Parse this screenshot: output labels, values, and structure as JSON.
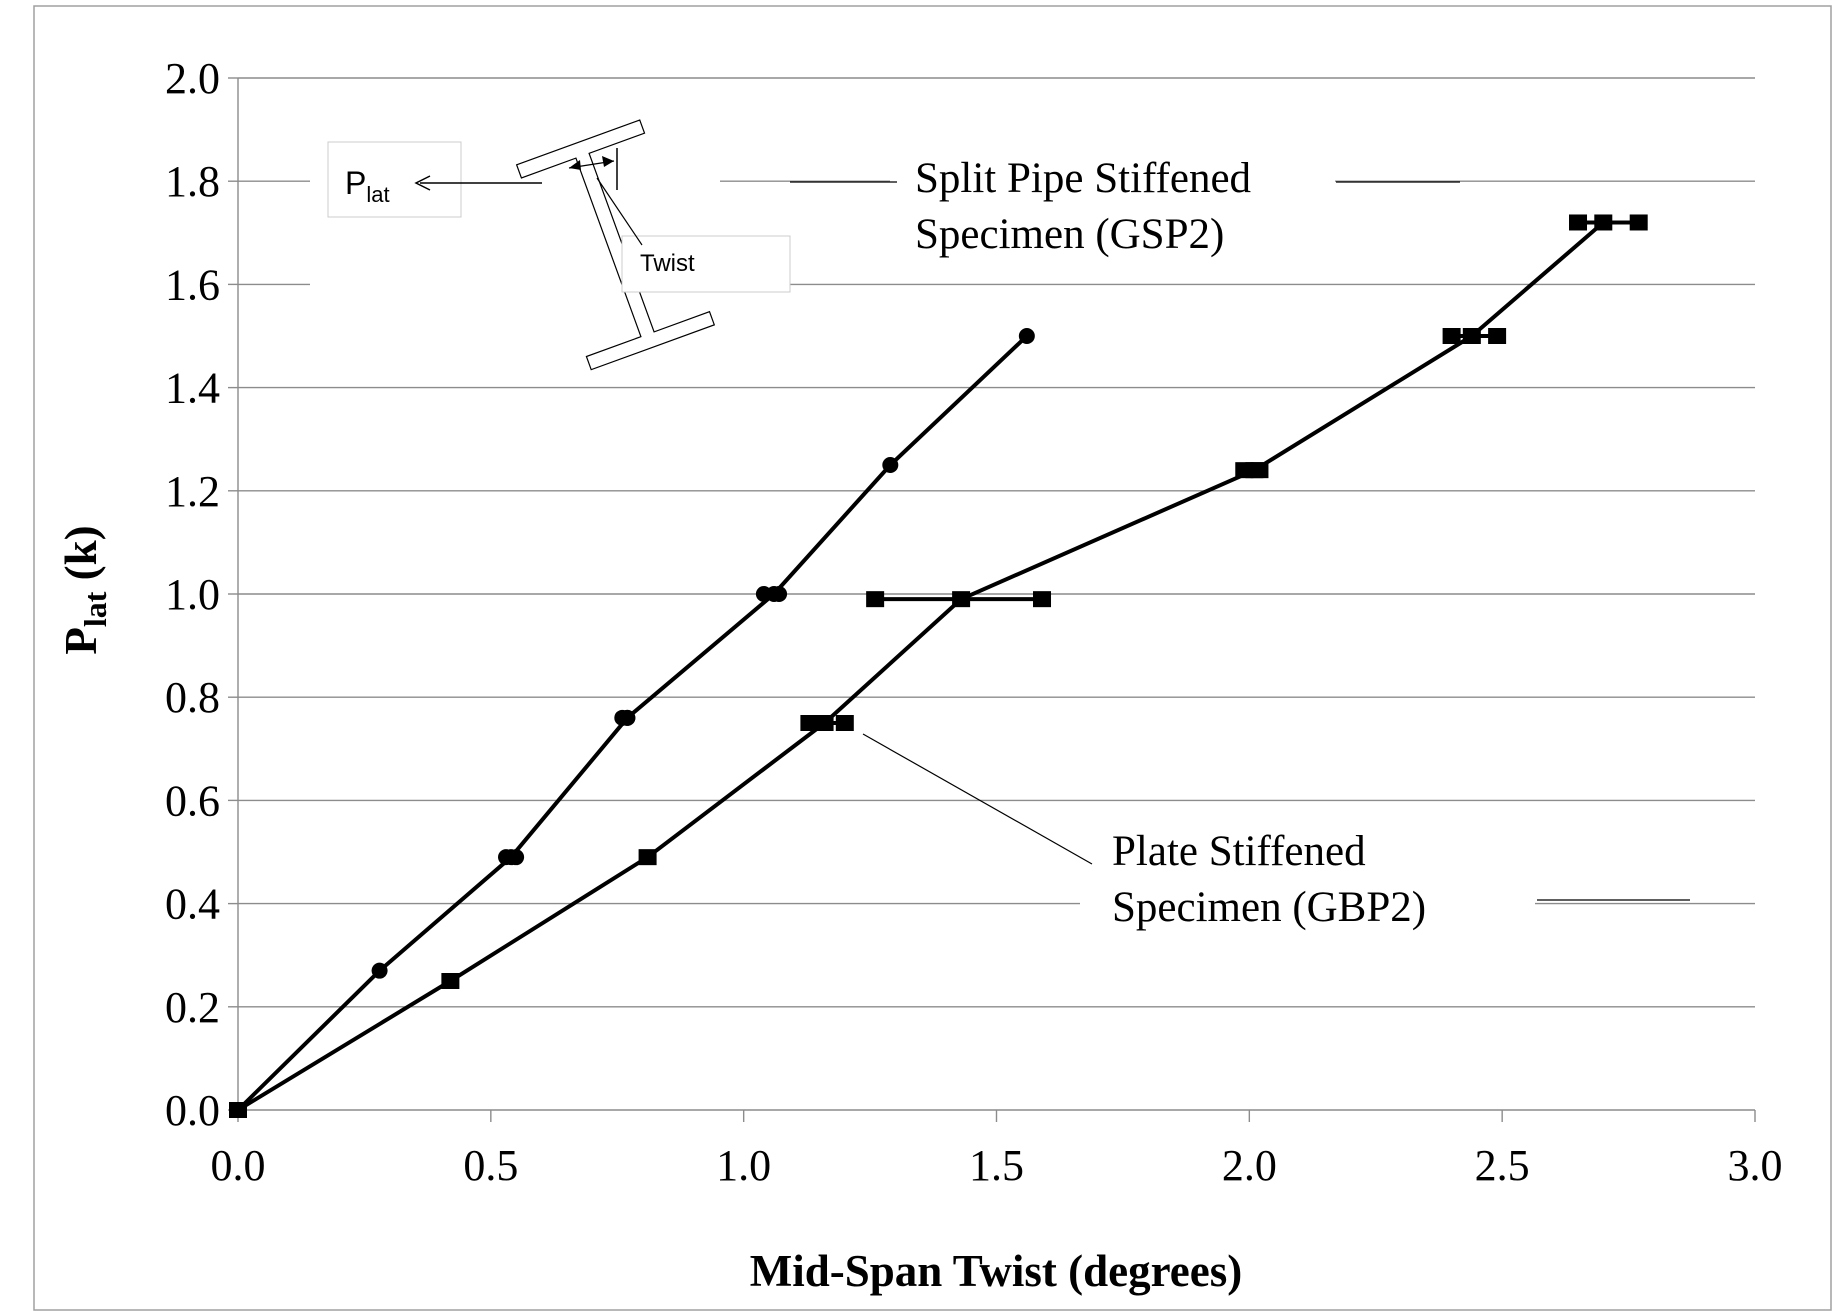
{
  "chart_data": {
    "type": "line",
    "xlabel": "Mid-Span Twist (degrees)",
    "ylabel_main": "P",
    "ylabel_sub": "lat",
    "ylabel_unit": " (k)",
    "xlim": [
      0.0,
      3.0
    ],
    "ylim": [
      0.0,
      2.0
    ],
    "xticks": [
      "0.0",
      "0.5",
      "1.0",
      "1.5",
      "2.0",
      "2.5",
      "3.0"
    ],
    "yticks": [
      "0.0",
      "0.2",
      "0.4",
      "0.6",
      "0.8",
      "1.0",
      "1.2",
      "1.4",
      "1.6",
      "1.8",
      "2.0"
    ],
    "grid": "horizontal",
    "series": [
      {
        "marker": "circle",
        "x": [
          0.0,
          0.28,
          0.54,
          0.77,
          1.06,
          1.29,
          1.56
        ],
        "y": [
          0.0,
          0.27,
          0.49,
          0.76,
          1.0,
          1.25,
          1.5
        ],
        "xerr_low": [
          null,
          null,
          0.53,
          0.76,
          1.04,
          null,
          null
        ],
        "xerr_high": [
          null,
          null,
          0.55,
          0.77,
          1.07,
          null,
          null
        ]
      },
      {
        "marker": "square",
        "x": [
          0.0,
          0.42,
          0.81,
          1.16,
          1.43,
          2.01,
          2.44,
          2.7
        ],
        "y": [
          0.0,
          0.25,
          0.49,
          0.75,
          0.99,
          1.24,
          1.5,
          1.72
        ],
        "xerr_low": [
          null,
          null,
          null,
          1.13,
          1.26,
          1.99,
          2.4,
          2.65
        ],
        "xerr_high": [
          null,
          null,
          null,
          1.2,
          1.59,
          2.02,
          2.49,
          2.77
        ]
      }
    ],
    "annotations": {
      "gsp2_line1": "Split Pipe Stiffened",
      "gsp2_line2": "Specimen (GSP2)",
      "gbp2_line1": "Plate Stiffened",
      "gbp2_line2": "Specimen (GBP2)"
    },
    "inset": {
      "load_main": "P",
      "load_sub": "lat",
      "twist_label": "Twist"
    }
  }
}
